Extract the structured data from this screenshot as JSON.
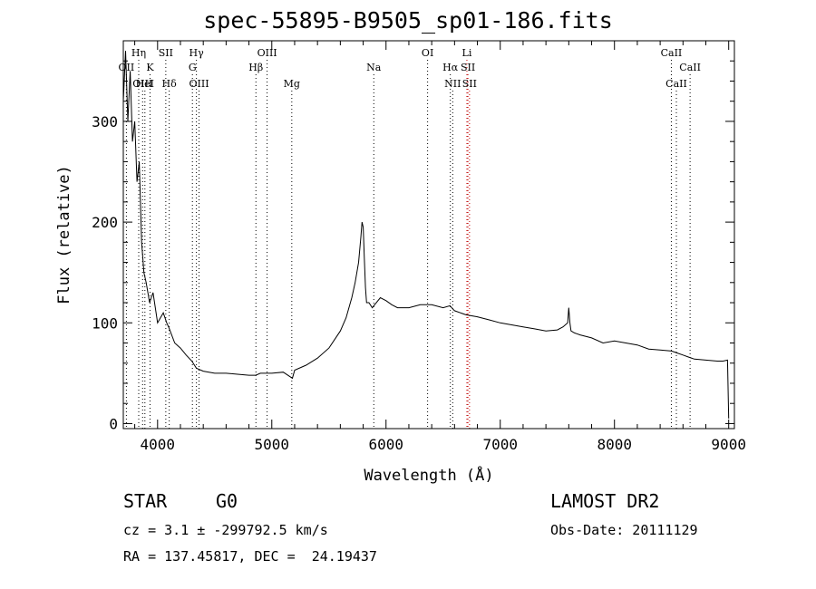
{
  "chart_data": {
    "type": "line",
    "title": "spec-55895-B9505_sp01-186.fits",
    "xlabel": "Wavelength (Å)",
    "ylabel": "Flux (relative)",
    "xlim": [
      3700,
      9050
    ],
    "ylim": [
      -5,
      380
    ],
    "x_ticks": [
      4000,
      5000,
      6000,
      7000,
      8000,
      9000
    ],
    "y_ticks": [
      0,
      100,
      200,
      300
    ],
    "grid": false,
    "legend": "none",
    "series": [
      {
        "x": [
          3700,
          3720,
          3740,
          3760,
          3780,
          3800,
          3820,
          3840,
          3860,
          3880,
          3900,
          3930,
          3960,
          4000,
          4050,
          4080,
          4100,
          4150,
          4200,
          4250,
          4300,
          4340,
          4400,
          4500,
          4600,
          4700,
          4800,
          4860,
          4900,
          5000,
          5100,
          5180,
          5200,
          5300,
          5400,
          5500,
          5600,
          5650,
          5700,
          5730,
          5760,
          5780,
          5790,
          5800,
          5810,
          5820,
          5830,
          5850,
          5880,
          5900,
          5950,
          6000,
          6050,
          6100,
          6200,
          6300,
          6400,
          6500,
          6560,
          6600,
          6700,
          6800,
          6900,
          7000,
          7100,
          7200,
          7300,
          7400,
          7500,
          7550,
          7590,
          7600,
          7610,
          7620,
          7650,
          7700,
          7800,
          7900,
          8000,
          8100,
          8200,
          8300,
          8400,
          8500,
          8550,
          8600,
          8650,
          8700,
          8800,
          8900,
          8950,
          8990,
          9000
        ],
        "y": [
          320,
          370,
          300,
          350,
          280,
          300,
          240,
          260,
          180,
          150,
          140,
          120,
          130,
          100,
          110,
          100,
          95,
          80,
          75,
          68,
          62,
          55,
          52,
          50,
          50,
          49,
          48,
          48,
          50,
          50,
          51,
          45,
          53,
          58,
          65,
          75,
          92,
          105,
          125,
          140,
          160,
          185,
          200,
          195,
          165,
          135,
          120,
          120,
          115,
          118,
          125,
          122,
          118,
          115,
          115,
          118,
          118,
          115,
          117,
          112,
          108,
          106,
          103,
          100,
          98,
          96,
          94,
          92,
          93,
          96,
          100,
          115,
          100,
          92,
          90,
          88,
          85,
          80,
          82,
          80,
          78,
          74,
          73,
          72,
          70,
          68,
          66,
          64,
          63,
          62,
          62,
          63,
          5
        ]
      }
    ],
    "line_markers": [
      {
        "label": "OII",
        "x": 3727,
        "row": 1
      },
      {
        "label": "Hη",
        "x": 3835,
        "row": 0
      },
      {
        "label": "OIII",
        "x": 3869,
        "row": 2
      },
      {
        "label": "K",
        "x": 3934,
        "row": 1
      },
      {
        "label": "HeI",
        "x": 3889,
        "row": 2
      },
      {
        "label": "SII",
        "x": 4072,
        "row": 0
      },
      {
        "label": "Hδ",
        "x": 4102,
        "row": 2
      },
      {
        "label": "Hγ",
        "x": 4340,
        "row": 0
      },
      {
        "label": "G",
        "x": 4305,
        "row": 1
      },
      {
        "label": "OIII",
        "x": 4363,
        "row": 2
      },
      {
        "label": "OIII",
        "x": 4959,
        "row": 0
      },
      {
        "label": "Hβ",
        "x": 4861,
        "row": 1
      },
      {
        "label": "Mg",
        "x": 5175,
        "row": 2
      },
      {
        "label": "Na",
        "x": 5893,
        "row": 1
      },
      {
        "label": "OI",
        "x": 6364,
        "row": 0
      },
      {
        "label": "Li",
        "x": 6708,
        "row": 0
      },
      {
        "label": "Hα",
        "x": 6563,
        "row": 1
      },
      {
        "label": "SII",
        "x": 6717,
        "row": 1
      },
      {
        "label": "NII",
        "x": 6584,
        "row": 2
      },
      {
        "label": "SII",
        "x": 6731,
        "row": 2
      },
      {
        "label": "CaII",
        "x": 8498,
        "row": 0
      },
      {
        "label": "CaII",
        "x": 8662,
        "row": 1
      },
      {
        "label": "CaII",
        "x": 8542,
        "row": 2
      }
    ]
  },
  "info": {
    "object_class": "STAR",
    "subclass": "G0",
    "survey": "LAMOST DR2",
    "cz": "cz = 3.1 ± -299792.5 km/s",
    "obs_date": "Obs-Date: 20111129",
    "radec": "RA = 137.45817, DEC =  24.19437"
  }
}
